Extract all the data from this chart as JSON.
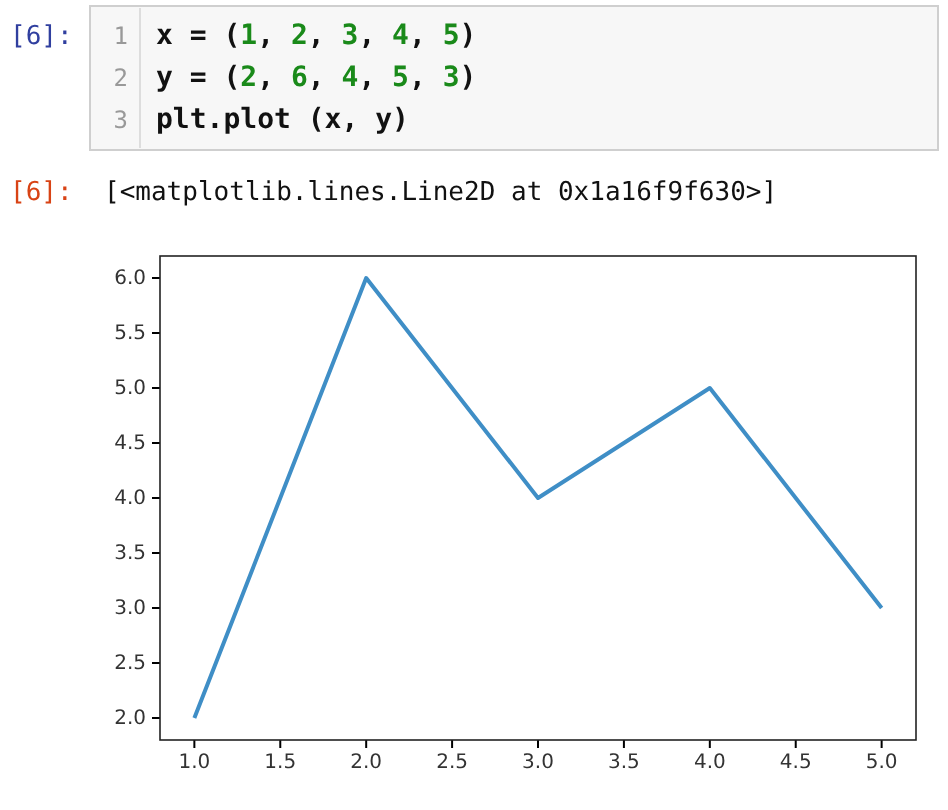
{
  "chart_data": {
    "type": "line",
    "x": [
      1,
      2,
      3,
      4,
      5
    ],
    "series": [
      {
        "color": "#3f8ec6",
        "values": [
          2,
          6,
          4,
          5,
          3
        ]
      }
    ],
    "xlim": [
      0.8,
      5.2
    ],
    "ylim": [
      1.8,
      6.2
    ],
    "xticks": [
      {
        "value": 1,
        "label": "1.0"
      },
      {
        "value": 1.5,
        "label": "1.5"
      },
      {
        "value": 2,
        "label": "2.0"
      },
      {
        "value": 2.5,
        "label": "2.5"
      },
      {
        "value": 3,
        "label": "3.0"
      },
      {
        "value": 3.5,
        "label": "3.5"
      },
      {
        "value": 4,
        "label": "4.0"
      },
      {
        "value": 4.5,
        "label": "4.5"
      },
      {
        "value": 5,
        "label": "5.0"
      }
    ],
    "yticks": [
      {
        "value": 2,
        "label": "2.0"
      },
      {
        "value": 2.5,
        "label": "2.5"
      },
      {
        "value": 3,
        "label": "3.0"
      },
      {
        "value": 3.5,
        "label": "3.5"
      },
      {
        "value": 4,
        "label": "4.0"
      },
      {
        "value": 4.5,
        "label": "4.5"
      },
      {
        "value": 5,
        "label": "5.0"
      },
      {
        "value": 5.5,
        "label": "5.5"
      },
      {
        "value": 6,
        "label": "6.0"
      }
    ],
    "grid": false,
    "annotations": [
      "[6]:",
      "1",
      "2",
      "3",
      "x = (1, 2, 3, 4, 5)",
      "y = (2, 6, 4, 5, 3)",
      "plt.plot (x, y)",
      "[6]:",
      "[<matplotlib.lines.Line2D at 0x1a16f9f630>]"
    ]
  }
}
